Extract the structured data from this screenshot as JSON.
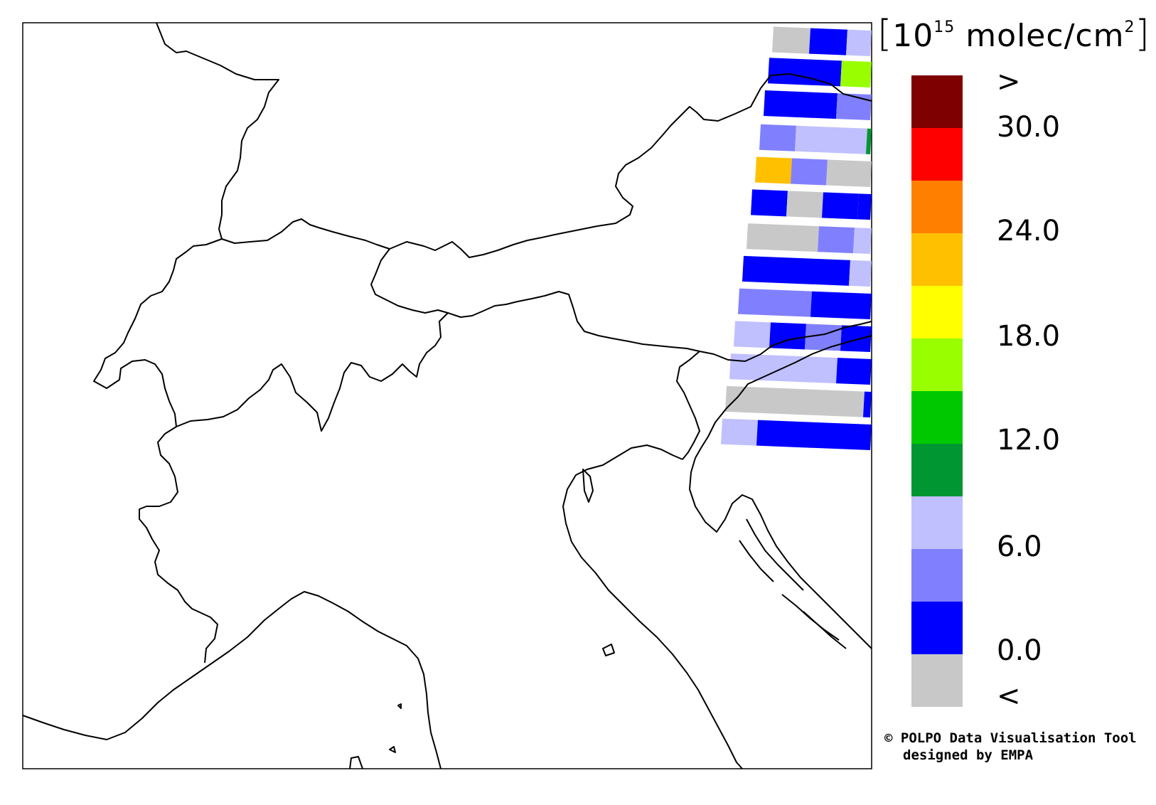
{
  "colorbar": {
    "unit_prefix": "[",
    "unit_base": "10",
    "unit_exp": "15",
    "unit_rest": "molec/cm",
    "unit_sq": "2",
    "unit_suffix": "]",
    "over_label": ">",
    "under_label": "<",
    "tick_labels": [
      "30.0",
      "24.0",
      "18.0",
      "12.0",
      "6.0",
      "0.0"
    ],
    "colors_top_to_bottom": [
      "#7f0000",
      "#ff0000",
      "#ff8000",
      "#ffc000",
      "#ffff00",
      "#99ff00",
      "#00c800",
      "#009632",
      "#c0c0ff",
      "#8080ff",
      "#0000ff",
      "#c8c8c8"
    ]
  },
  "credit": {
    "line1": "© POLPO Data Visualisation Tool",
    "line2": "designed by EMPA"
  },
  "swath_pixels_colors": [
    "grey",
    "blue",
    "lavender",
    "blue",
    "lime",
    "blue",
    "periwinkle",
    "periwinkle",
    "lavender",
    "green",
    "orange",
    "periwinkle",
    "grey",
    "blue",
    "grey",
    "blue",
    "blue",
    "grey",
    "periwinkle",
    "lavender",
    "blue",
    "lavender",
    "periwinkle",
    "blue",
    "lavender",
    "blue",
    "periwinkle",
    "blue",
    "lavender",
    "blue"
  ]
}
